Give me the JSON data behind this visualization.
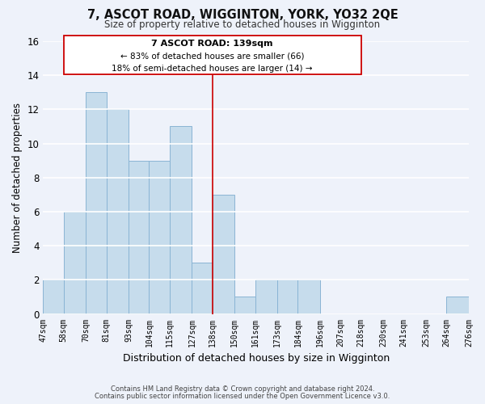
{
  "title": "7, ASCOT ROAD, WIGGINTON, YORK, YO32 2QE",
  "subtitle": "Size of property relative to detached houses in Wigginton",
  "xlabel": "Distribution of detached houses by size in Wigginton",
  "ylabel": "Number of detached properties",
  "bin_edges": [
    47,
    58,
    70,
    81,
    93,
    104,
    115,
    127,
    138,
    150,
    161,
    173,
    184,
    196,
    207,
    218,
    230,
    241,
    253,
    264,
    276
  ],
  "bar_heights": [
    2,
    6,
    13,
    12,
    9,
    9,
    11,
    3,
    7,
    1,
    2,
    2,
    2,
    0,
    0,
    0,
    0,
    0,
    0,
    1
  ],
  "bar_color": "#c6dcec",
  "bar_edge_color": "#8ab4d4",
  "vline_x": 138,
  "vline_color": "#cc0000",
  "ylim": [
    0,
    16
  ],
  "yticks": [
    0,
    2,
    4,
    6,
    8,
    10,
    12,
    14,
    16
  ],
  "annotation_title": "7 ASCOT ROAD: 139sqm",
  "annotation_line1": "← 83% of detached houses are smaller (66)",
  "annotation_line2": "18% of semi-detached houses are larger (14) →",
  "annotation_box_edge_color": "#cc0000",
  "footer_line1": "Contains HM Land Registry data © Crown copyright and database right 2024.",
  "footer_line2": "Contains public sector information licensed under the Open Government Licence v3.0.",
  "background_color": "#eef2fa",
  "grid_color": "#ffffff"
}
